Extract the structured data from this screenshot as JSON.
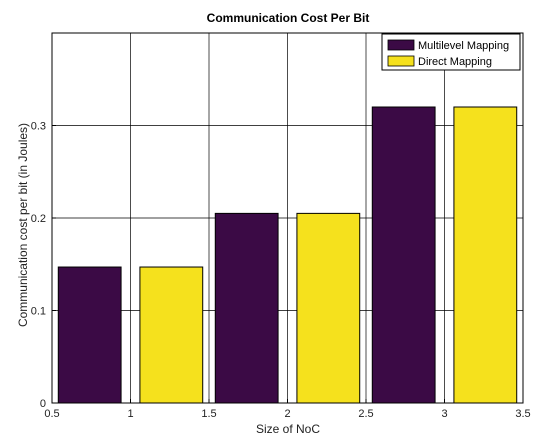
{
  "chart_data": {
    "type": "bar",
    "title": "Communication Cost Per Bit",
    "xlabel": "Size of NoC",
    "ylabel": "Communication cost per bit (in Joules)",
    "x": [
      1,
      2,
      3
    ],
    "xlim": [
      0.5,
      3.5
    ],
    "ylim": [
      0,
      0.4
    ],
    "xticks": [
      "0.5",
      "1",
      "1.5",
      "2",
      "2.5",
      "3",
      "3.5"
    ],
    "yticks": [
      "0",
      "0.1",
      "0.2",
      "0.3"
    ],
    "grid": true,
    "legend_position": "top-right",
    "series": [
      {
        "name": "Multilevel Mapping",
        "color": "#3b0a45",
        "values": [
          0.147,
          0.205,
          0.32
        ]
      },
      {
        "name": "Direct Mapping",
        "color": "#f5e11d",
        "values": [
          0.147,
          0.205,
          0.32
        ]
      }
    ]
  }
}
